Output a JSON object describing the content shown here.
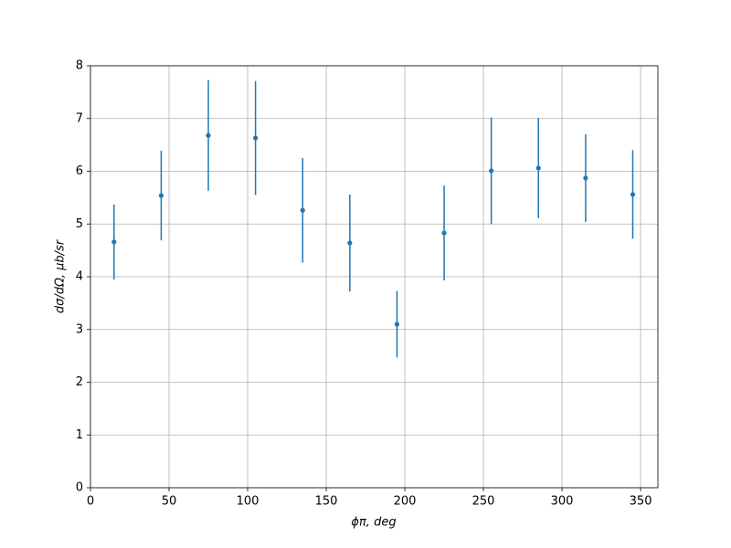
{
  "chart_data": {
    "type": "errorbar",
    "x_label": "ϕπ, deg",
    "y_label": "dσ/dΩ, μb/sr",
    "x": [
      15,
      45,
      75,
      105,
      135,
      165,
      195,
      225,
      255,
      285,
      315,
      345
    ],
    "values": [
      4.66,
      5.54,
      6.68,
      6.63,
      5.26,
      4.64,
      3.1,
      4.83,
      6.01,
      6.06,
      5.87,
      5.56
    ],
    "errors": [
      0.71,
      0.85,
      1.05,
      1.08,
      0.99,
      0.92,
      0.63,
      0.9,
      1.01,
      0.95,
      0.83,
      0.84
    ],
    "color": "#1f77b4",
    "xlim": [
      0,
      361
    ],
    "ylim": [
      0,
      8
    ],
    "xticks": [
      0,
      50,
      100,
      150,
      200,
      250,
      300,
      350
    ],
    "yticks": [
      0,
      1,
      2,
      3,
      4,
      5,
      6,
      7,
      8
    ],
    "grid": true
  }
}
